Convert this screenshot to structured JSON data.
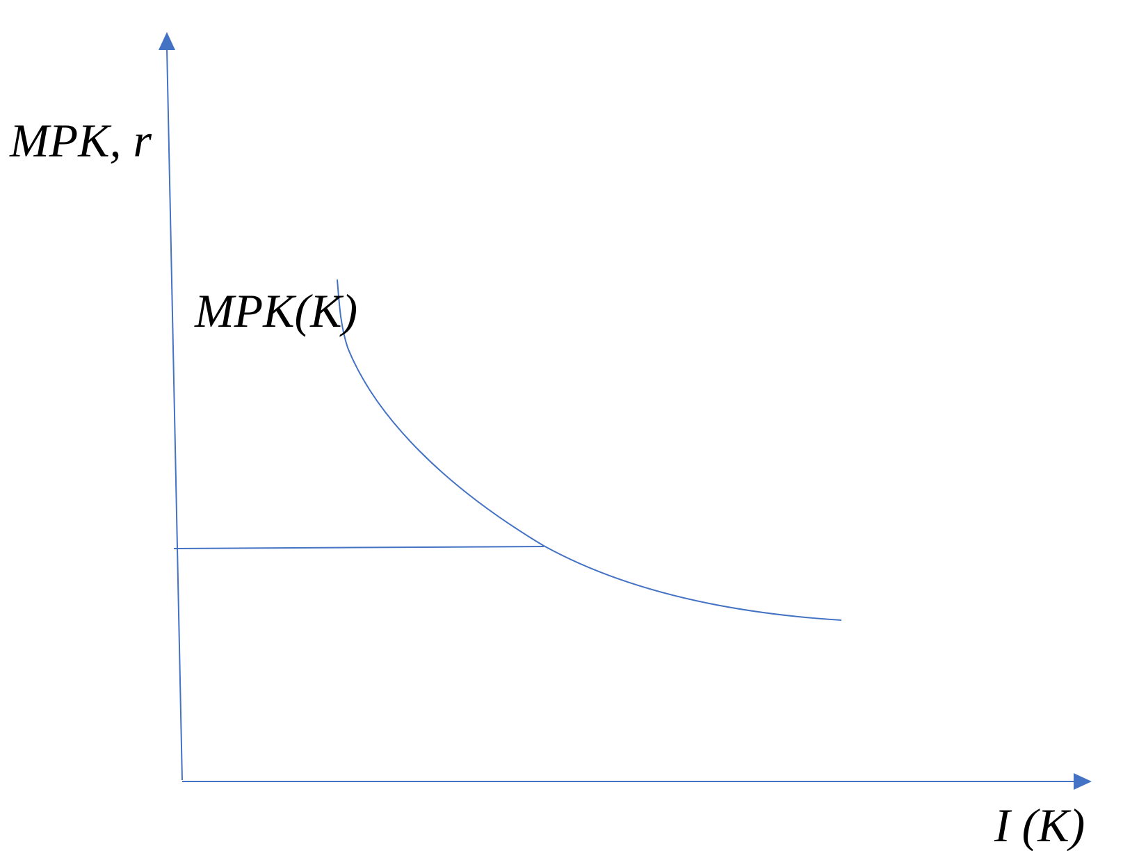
{
  "diagram": {
    "y_axis_label": "MPK, r",
    "x_axis_label": "I (K)",
    "curve_label": "MPK(K)",
    "line_color": "#4472C4",
    "text_color": "#000000"
  }
}
